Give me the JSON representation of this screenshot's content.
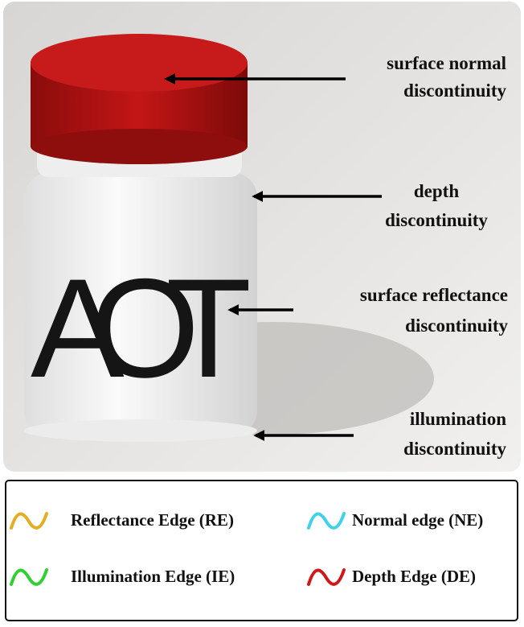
{
  "photo": {
    "label_text": "AOT"
  },
  "annotations": [
    {
      "lines": [
        "surface normal",
        "discontinuity"
      ]
    },
    {
      "lines": [
        "depth",
        "discontinuity"
      ]
    },
    {
      "lines": [
        "surface reflectance",
        "discontinuity"
      ]
    },
    {
      "lines": [
        "illumination",
        "discontinuity"
      ]
    }
  ],
  "legend": {
    "items": [
      {
        "label": "Reflectance Edge (RE)",
        "color": "#e6ad22"
      },
      {
        "label": "Normal edge (NE)",
        "color": "#3fd3ea"
      },
      {
        "label": "Illumination Edge (IE)",
        "color": "#2fd02f"
      },
      {
        "label": "Depth Edge (DE)",
        "color": "#d01818"
      }
    ]
  }
}
